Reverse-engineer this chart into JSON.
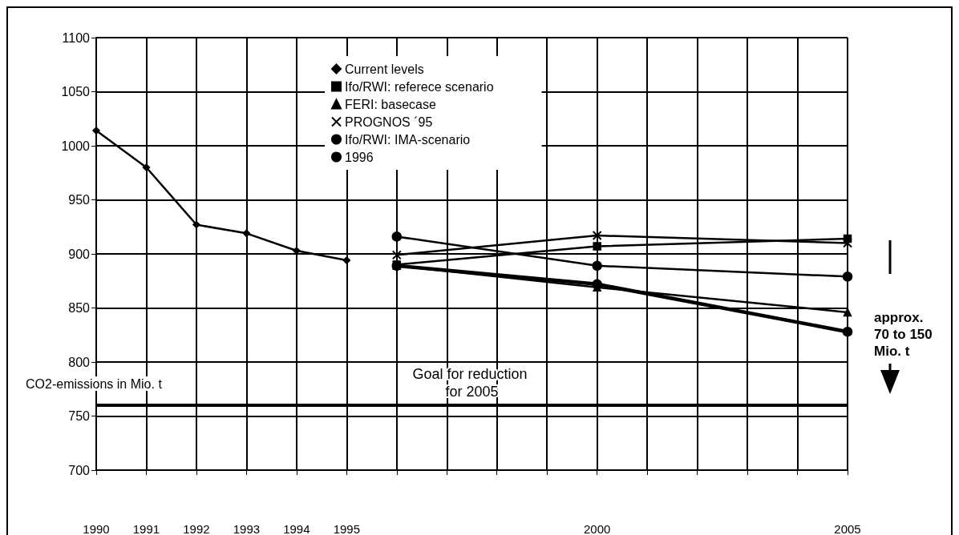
{
  "chart_data": {
    "type": "line",
    "ylabel": "CO2-emissions in Mio. t",
    "xlim": [
      1990,
      2005
    ],
    "xticks": [
      1990,
      1991,
      1992,
      1993,
      1994,
      1995,
      {
        "value": 1996,
        "label": null
      },
      {
        "value": 1997,
        "label": null
      },
      {
        "value": 1998,
        "label": null
      },
      {
        "value": 1999,
        "label": null
      },
      2000,
      {
        "value": 2001,
        "label": null
      },
      {
        "value": 2002,
        "label": null
      },
      {
        "value": 2003,
        "label": null
      },
      {
        "value": 2004,
        "label": null
      },
      2005
    ],
    "ylim": [
      700,
      1100
    ],
    "yticks": [
      700,
      750,
      800,
      850,
      900,
      950,
      1000,
      1050,
      1100
    ],
    "grid": true,
    "legend": "top",
    "line_style": "solid",
    "series": [
      {
        "name": "Current levels",
        "color": "#000000",
        "marker": "diamond",
        "x": [
          1990,
          1991,
          1992,
          1993,
          1994,
          1995
        ],
        "values": [
          1014,
          980,
          927,
          919,
          903,
          894
        ]
      },
      {
        "name": "Ifo/RWI: referece scenario",
        "color": "#000000",
        "marker": "square",
        "x": [
          1996,
          2000,
          2005
        ],
        "values": [
          890,
          907,
          914
        ]
      },
      {
        "name": "FERI: basecase",
        "color": "#000000",
        "marker": "triangle",
        "x": [
          1996,
          2000,
          2005
        ],
        "values": [
          889,
          869,
          846
        ]
      },
      {
        "name": "PROGNOS ´95",
        "color": "#000000",
        "marker": "cross",
        "x": [
          1996,
          2000,
          2005
        ],
        "values": [
          899,
          917,
          910
        ]
      },
      {
        "name": "Ifo/RWI: IMA-scenario",
        "color": "#000000",
        "marker": "circle",
        "x": [
          1996,
          2000,
          2005
        ],
        "values": [
          889,
          872,
          828
        ]
      },
      {
        "name": "1996",
        "color": "#000000",
        "marker": "circle",
        "x": [
          1996,
          2000,
          2005
        ],
        "values": [
          916,
          889,
          879
        ]
      }
    ],
    "ref_lines": [
      {
        "axis": "y",
        "value": 760,
        "label": "Goal for reduction for 2005",
        "color": "#000000",
        "line_style": "solid"
      }
    ],
    "annotations": [
      "approx. 70 to 150 Mio. t"
    ]
  }
}
